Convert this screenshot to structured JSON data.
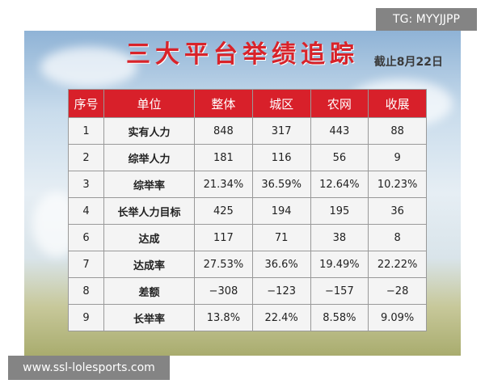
{
  "header": {
    "title": "三大平台举绩追踪",
    "subtitle": "截止8月22日"
  },
  "watermarks": {
    "top": "TG: MYYJJPP",
    "bottom": "www.ssl-lolesports.com"
  },
  "table": {
    "columns": [
      "序号",
      "单位",
      "整体",
      "城区",
      "农网",
      "收展"
    ],
    "rows": [
      [
        "1",
        "实有人力",
        "848",
        "317",
        "443",
        "88"
      ],
      [
        "2",
        "综举人力",
        "181",
        "116",
        "56",
        "9"
      ],
      [
        "3",
        "综举率",
        "21.34%",
        "36.59%",
        "12.64%",
        "10.23%"
      ],
      [
        "4",
        "长举人力目标",
        "425",
        "194",
        "195",
        "36"
      ],
      [
        "6",
        "达成",
        "117",
        "71",
        "38",
        "8"
      ],
      [
        "7",
        "达成率",
        "27.53%",
        "36.6%",
        "19.49%",
        "22.22%"
      ],
      [
        "8",
        "差额",
        "−308",
        "−123",
        "−157",
        "−28"
      ],
      [
        "9",
        "长举率",
        "13.8%",
        "22.4%",
        "8.58%",
        "9.09%"
      ]
    ]
  }
}
